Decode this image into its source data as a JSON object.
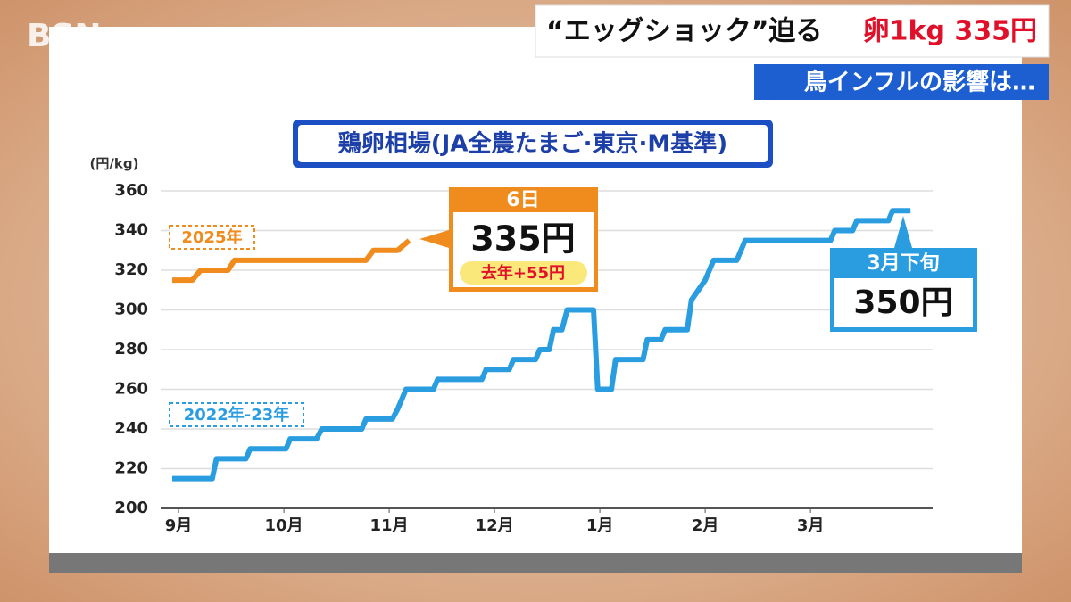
{
  "logo": "BSN",
  "header": {
    "headline": "“エッグショック”迫る",
    "highlight": "卵1kg 335円",
    "subheadline": "鳥インフルの影響は…"
  },
  "chart_data": {
    "type": "line",
    "title": "鶏卵相場(JA全農たまご·東京·M基準)",
    "y_unit": "(円/kg)",
    "xlim": [
      -0.17,
      7.16
    ],
    "xticks": [
      {
        "value": 0,
        "label": "9月"
      },
      {
        "value": 1,
        "label": "10月"
      },
      {
        "value": 2,
        "label": "11月"
      },
      {
        "value": 3,
        "label": "12月"
      },
      {
        "value": 4,
        "label": "1月"
      },
      {
        "value": 5,
        "label": "2月"
      },
      {
        "value": 6,
        "label": "3月"
      }
    ],
    "ylim": [
      200,
      360
    ],
    "yticks": [
      200,
      220,
      240,
      260,
      280,
      300,
      320,
      340,
      360
    ],
    "grid": true,
    "series": [
      {
        "name": "2025年",
        "color": "#f08c1e",
        "x": [
          -0.06,
          0.13,
          0.21,
          0.47,
          0.53,
          1.78,
          1.85,
          2.08,
          2.19
        ],
        "values": [
          315,
          315,
          320,
          320,
          325,
          325,
          330,
          330,
          335
        ]
      },
      {
        "name": "2022年-23年",
        "color": "#2a9de0",
        "x": [
          -0.06,
          0.32,
          0.36,
          0.64,
          0.68,
          1.02,
          1.06,
          1.31,
          1.36,
          1.74,
          1.78,
          2.03,
          2.08,
          2.16,
          2.42,
          2.46,
          2.88,
          2.92,
          3.14,
          3.18,
          3.39,
          3.43,
          3.52,
          3.56,
          3.64,
          3.69,
          3.94,
          3.98,
          4.11,
          4.15,
          4.41,
          4.45,
          4.58,
          4.62,
          4.83,
          4.87,
          5.0,
          5.08,
          5.3,
          5.38,
          6.19,
          6.23,
          6.4,
          6.44,
          6.74,
          6.78,
          6.95
        ],
        "values": [
          215,
          215,
          225,
          225,
          230,
          230,
          235,
          235,
          240,
          240,
          245,
          245,
          250,
          260,
          260,
          265,
          265,
          270,
          270,
          275,
          275,
          280,
          280,
          290,
          290,
          300,
          300,
          260,
          260,
          275,
          275,
          285,
          285,
          290,
          290,
          305,
          315,
          325,
          325,
          335,
          335,
          340,
          340,
          345,
          345,
          350,
          350
        ]
      }
    ],
    "annotations": [
      {
        "heading": "6日",
        "text": "335円",
        "note": "去年+55円"
      },
      {
        "heading": "3月下旬",
        "text": "350円"
      }
    ]
  }
}
